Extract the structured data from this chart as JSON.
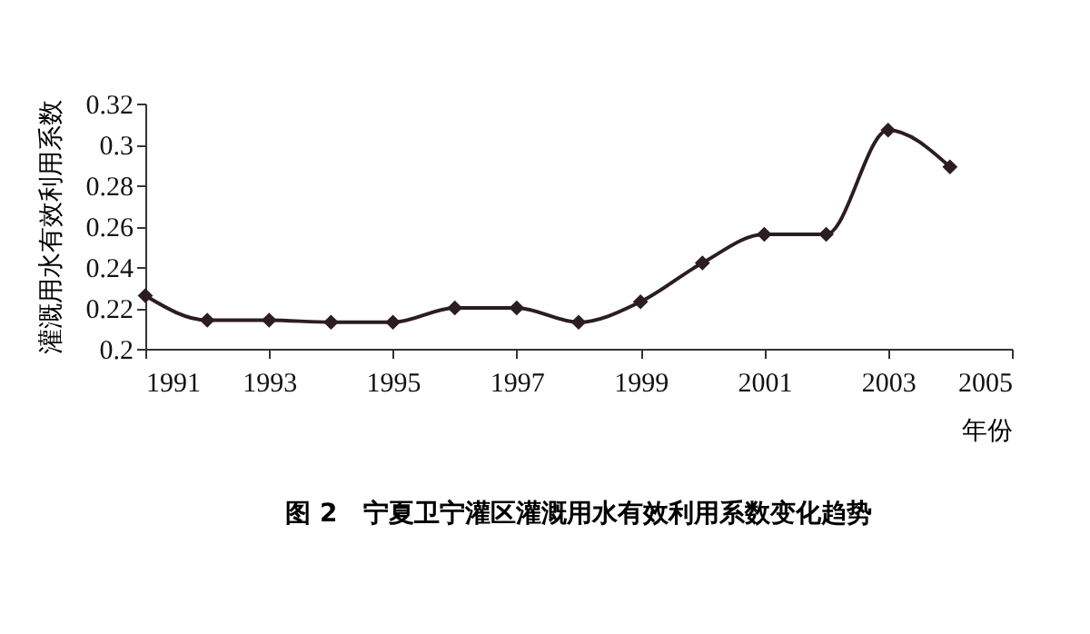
{
  "chart_data": {
    "type": "line",
    "title": "图 2　宁夏卫宁灌区灌溉用水有效利用系数变化趋势",
    "xlabel": "年份",
    "ylabel": "灌溉用水有效利用系数",
    "x": [
      1991,
      1992,
      1993,
      1994,
      1995,
      1996,
      1997,
      1998,
      1999,
      2000,
      2001,
      2002,
      2003,
      2004
    ],
    "series": [
      {
        "color": "#2b1d22",
        "values": [
          0.226,
          0.214,
          0.214,
          0.213,
          0.213,
          0.22,
          0.22,
          0.213,
          0.223,
          0.242,
          0.256,
          0.256,
          0.307,
          0.289
        ]
      }
    ],
    "xlim": [
      1991,
      2005
    ],
    "xticks": [
      1991,
      1993,
      1995,
      1997,
      1999,
      2001,
      2003,
      2005
    ],
    "ylim": [
      0.2,
      0.32
    ],
    "yticks": [
      0.2,
      0.22,
      0.24,
      0.26,
      0.28,
      0.3,
      0.32
    ],
    "grid": false,
    "legend": false,
    "marker": "diamond",
    "line_style": "solid"
  }
}
